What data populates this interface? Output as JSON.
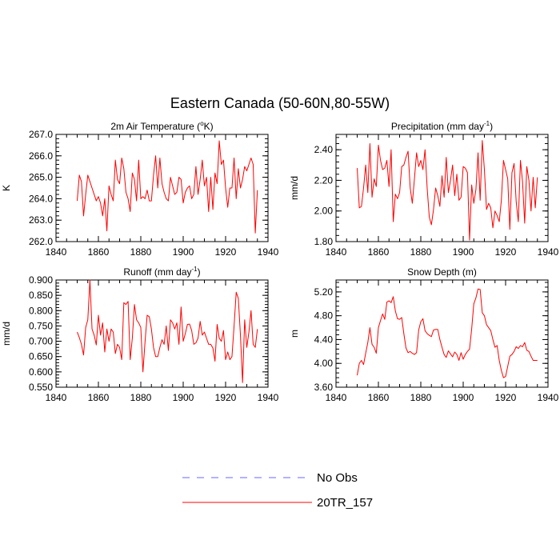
{
  "figure_title": "Eastern Canada (50-60N,80-55W)",
  "legend": [
    {
      "label": "No Obs",
      "color": "#6666ff",
      "dashed": true
    },
    {
      "label": "20TR_157",
      "color": "#ff0000",
      "dashed": false
    }
  ],
  "chart_data": [
    {
      "type": "line",
      "title": "2m Air Temperature (oK)",
      "title_main": "2m Air Temperature (",
      "title_sup": "o",
      "title_rest": "K)",
      "ylabel": "K",
      "xlim": [
        1840,
        1940
      ],
      "ylim": [
        262.0,
        267.0
      ],
      "xticks": [
        1840,
        1860,
        1880,
        1900,
        1920,
        1940
      ],
      "xtick_labels": [
        "1840",
        "1860",
        "1880",
        "1900",
        "1920",
        "1940"
      ],
      "yticks": [
        262.0,
        263.0,
        264.0,
        265.0,
        266.0,
        267.0
      ],
      "ytick_labels": [
        "262.0",
        "263.0",
        "264.0",
        "265.0",
        "266.0",
        "267.0"
      ],
      "x_start": 1850,
      "series": [
        {
          "name": "20TR_157",
          "color": "#ff0000",
          "values": [
            263.9,
            265.1,
            264.8,
            263.2,
            264.2,
            265.1,
            264.8,
            264.5,
            264.2,
            263.9,
            264.1,
            263.8,
            263.2,
            264.0,
            262.5,
            264.6,
            264.2,
            263.9,
            265.8,
            264.9,
            264.7,
            265.9,
            265.4,
            264.3,
            264.0,
            263.4,
            265.2,
            264.9,
            263.9,
            265.8,
            264.0,
            264.1,
            264.0,
            264.4,
            263.9,
            263.9,
            265.1,
            266.0,
            264.5,
            265.9,
            264.7,
            264.3,
            264.0,
            263.9,
            265.0,
            264.6,
            264.2,
            264.3,
            265.0,
            264.9,
            263.8,
            264.3,
            264.5,
            264.6,
            264.0,
            264.2,
            265.5,
            264.2,
            264.9,
            265.8,
            264.6,
            265.0,
            263.4,
            265.0,
            263.5,
            265.2,
            264.7,
            266.7,
            265.6,
            265.8,
            264.5,
            263.6,
            264.5,
            264.5,
            265.9,
            264.0,
            265.4,
            264.5,
            264.9,
            265.5,
            265.3,
            265.6,
            265.9,
            265.6,
            262.4,
            264.4
          ]
        }
      ]
    },
    {
      "type": "line",
      "title": "Precipitation (mm day-1)",
      "title_main": "Precipitation (mm day",
      "title_sup": "-1",
      "title_rest": ")",
      "ylabel": "mm/d",
      "xlim": [
        1840,
        1940
      ],
      "ylim": [
        1.8,
        2.5
      ],
      "xticks": [
        1840,
        1860,
        1880,
        1900,
        1920,
        1940
      ],
      "xtick_labels": [
        "1840",
        "1860",
        "1880",
        "1900",
        "1920",
        "1940"
      ],
      "yticks": [
        1.8,
        2.0,
        2.2,
        2.4
      ],
      "ytick_labels": [
        "1.80",
        "2.00",
        "2.20",
        "2.40"
      ],
      "x_start": 1850,
      "series": [
        {
          "name": "20TR_157",
          "color": "#ff0000",
          "values": [
            2.28,
            2.02,
            2.03,
            2.15,
            2.3,
            2.12,
            2.44,
            2.09,
            2.21,
            2.16,
            2.43,
            2.33,
            2.27,
            2.28,
            2.33,
            2.16,
            2.4,
            1.93,
            2.11,
            2.08,
            2.12,
            2.29,
            2.3,
            2.35,
            2.39,
            2.15,
            2.05,
            2.21,
            2.38,
            2.29,
            2.33,
            2.27,
            2.4,
            2.15,
            1.96,
            1.91,
            2.01,
            2.15,
            2.1,
            2.03,
            2.23,
            2.09,
            2.35,
            2.12,
            2.2,
            2.3,
            2.1,
            2.24,
            2.07,
            2.09,
            2.29,
            2.28,
            2.25,
            1.81,
            2.17,
            2.05,
            2.14,
            2.38,
            2.07,
            2.46,
            2.27,
            2.01,
            2.05,
            2.02,
            1.89,
            2.0,
            1.97,
            1.93,
            2.07,
            2.33,
            2.27,
            2.21,
            1.88,
            2.25,
            2.31,
            2.06,
            1.93,
            2.33,
            2.19,
            1.92,
            2.29,
            2.2,
            2.0,
            2.22,
            2.02,
            2.22
          ]
        }
      ]
    },
    {
      "type": "line",
      "title": "Runoff (mm day-1)",
      "title_main": "Runoff (mm day",
      "title_sup": "-1",
      "title_rest": ")",
      "ylabel": "mm/d",
      "xlim": [
        1840,
        1940
      ],
      "ylim": [
        0.55,
        0.9
      ],
      "xticks": [
        1840,
        1860,
        1880,
        1900,
        1920,
        1940
      ],
      "xtick_labels": [
        "1840",
        "1860",
        "1880",
        "1900",
        "1920",
        "1940"
      ],
      "yticks": [
        0.55,
        0.6,
        0.65,
        0.7,
        0.75,
        0.8,
        0.85,
        0.9
      ],
      "ytick_labels": [
        "0.550",
        "0.600",
        "0.650",
        "0.700",
        "0.750",
        "0.800",
        "0.850",
        "0.900"
      ],
      "x_start": 1850,
      "series": [
        {
          "name": "20TR_157",
          "color": "#ff0000",
          "values": [
            0.73,
            0.712,
            0.69,
            0.655,
            0.745,
            0.77,
            0.9,
            0.74,
            0.72,
            0.688,
            0.785,
            0.72,
            0.76,
            0.665,
            0.74,
            0.7,
            0.74,
            0.73,
            0.66,
            0.69,
            0.68,
            0.64,
            0.826,
            0.82,
            0.83,
            0.64,
            0.71,
            0.82,
            0.77,
            0.76,
            0.745,
            0.6,
            0.698,
            0.785,
            0.78,
            0.74,
            0.68,
            0.65,
            0.65,
            0.68,
            0.705,
            0.69,
            0.75,
            0.67,
            0.77,
            0.76,
            0.74,
            0.76,
            0.69,
            0.812,
            0.7,
            0.725,
            0.755,
            0.756,
            0.735,
            0.69,
            0.695,
            0.71,
            0.765,
            0.72,
            0.73,
            0.71,
            0.69,
            0.69,
            0.678,
            0.635,
            0.755,
            0.71,
            0.7,
            0.735,
            0.64,
            0.665,
            0.64,
            0.65,
            0.75,
            0.86,
            0.84,
            0.72,
            0.565,
            0.77,
            0.68,
            0.73,
            0.8,
            0.69,
            0.68,
            0.74
          ]
        }
      ]
    },
    {
      "type": "line",
      "title": "Snow Depth (m)",
      "title_main": "Snow Depth (m)",
      "title_sup": "",
      "title_rest": "",
      "ylabel": "m",
      "xlim": [
        1840,
        1940
      ],
      "ylim": [
        3.6,
        5.4
      ],
      "xticks": [
        1840,
        1860,
        1880,
        1900,
        1920,
        1940
      ],
      "xtick_labels": [
        "1840",
        "1860",
        "1880",
        "1900",
        "1920",
        "1940"
      ],
      "yticks": [
        3.6,
        4.0,
        4.4,
        4.8,
        5.2
      ],
      "ytick_labels": [
        "3.60",
        "4.00",
        "4.40",
        "4.80",
        "5.20"
      ],
      "x_start": 1850,
      "series": [
        {
          "name": "20TR_157",
          "color": "#ff0000",
          "values": [
            3.8,
            4.0,
            4.05,
            3.98,
            4.17,
            4.35,
            4.6,
            4.32,
            4.27,
            4.17,
            4.6,
            4.72,
            4.83,
            4.74,
            5.03,
            5.05,
            5.02,
            5.12,
            4.88,
            4.75,
            4.74,
            4.77,
            4.5,
            4.26,
            4.18,
            4.2,
            4.17,
            4.15,
            4.18,
            4.56,
            4.7,
            4.75,
            4.55,
            4.5,
            4.47,
            4.45,
            4.56,
            4.57,
            4.57,
            4.4,
            4.27,
            4.15,
            4.1,
            4.21,
            4.16,
            4.11,
            4.19,
            4.15,
            4.05,
            4.18,
            4.07,
            4.15,
            4.2,
            4.24,
            4.58,
            5.0,
            5.1,
            5.25,
            5.24,
            4.85,
            4.8,
            4.65,
            4.6,
            4.55,
            4.4,
            4.27,
            4.3,
            4.05,
            3.88,
            3.76,
            3.78,
            3.95,
            4.12,
            4.15,
            4.2,
            4.28,
            4.25,
            4.3,
            4.28,
            4.35,
            4.22,
            4.2,
            4.12,
            4.05,
            4.05,
            4.05
          ]
        }
      ]
    }
  ]
}
